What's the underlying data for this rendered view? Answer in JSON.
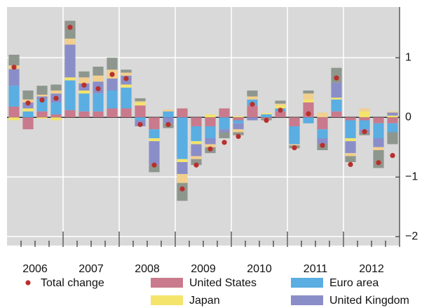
{
  "chart_data": {
    "type": "stacked-bar",
    "categories": [
      null,
      null,
      null,
      null,
      null,
      null,
      null,
      null,
      null,
      null,
      null,
      null,
      null,
      null,
      null,
      null,
      null,
      null,
      null,
      null,
      null,
      null,
      null,
      null,
      null,
      null,
      null,
      null
    ],
    "groups": [
      "2006",
      "2007",
      "2008",
      "2009",
      "2010",
      "2011",
      "2012"
    ],
    "ylim": [
      -2.15,
      1.85
    ],
    "yticks": [
      1,
      0,
      {
        "value": -1,
        "label": "−1"
      },
      {
        "value": -2,
        "label": "−2"
      }
    ],
    "grid": true,
    "series": [
      {
        "name": "United States",
        "color": "#c97a8c",
        "values": [
          0.18,
          -0.2,
          0.1,
          0.05,
          0.12,
          0.1,
          0.1,
          0.15,
          0.15,
          0.2,
          -0.2,
          0,
          0.15,
          -0.15,
          -0.15,
          0.15,
          -0.05,
          0.2,
          -0.02,
          0.1,
          -0.15,
          0.25,
          -0.2,
          0.1,
          -0.05,
          -0.05,
          -0.1,
          -0.1
        ]
      },
      {
        "name": "Euro area",
        "color": "#5aaee2",
        "values": [
          0.35,
          0.1,
          0.2,
          0.2,
          0.5,
          0.3,
          0.3,
          0.3,
          0.35,
          -0.05,
          -0.15,
          0.1,
          -0.7,
          -0.25,
          -0.2,
          -0.2,
          -0.05,
          0.1,
          0.05,
          0.05,
          -0.3,
          -0.1,
          -0.15,
          0.2,
          -0.3,
          -0.15,
          -0.25,
          -0.15
        ]
      },
      {
        "name": "Japan",
        "color": "#f4e46c",
        "values": [
          -0.05,
          0.05,
          -0.02,
          -0.05,
          0.05,
          0.05,
          0,
          0,
          0.05,
          0.05,
          -0.05,
          0,
          -0.05,
          -0.05,
          0.05,
          0,
          0.02,
          0,
          0.02,
          0.05,
          0,
          0.05,
          0,
          0.03,
          -0.05,
          0.1,
          0,
          0.03
        ]
      },
      {
        "name": "United Kingdom",
        "color": "#8a8ec8",
        "values": [
          0.28,
          0.1,
          0.05,
          0.15,
          0.55,
          0.12,
          0.2,
          0.2,
          0.15,
          -0.1,
          -0.4,
          -0.1,
          -0.2,
          -0.2,
          -0.1,
          -0.05,
          -0.1,
          -0.05,
          0,
          0,
          0,
          0,
          -0.1,
          0.25,
          -0.2,
          -0.05,
          -0.15,
          0.05
        ]
      },
      {
        "color": "#f1cf8e",
        "values": [
          0.06,
          0.05,
          0.03,
          0.05,
          0.1,
          0.1,
          0.1,
          0.15,
          0.05,
          0.02,
          0,
          0.03,
          -0.15,
          -0.05,
          -0.05,
          0,
          -0.05,
          0.05,
          0,
          0.03,
          -0.02,
          0.1,
          0.08,
          0,
          -0.05,
          0.05,
          -0.05,
          0.02
        ]
      },
      {
        "color": "#8e978e",
        "values": [
          0.18,
          0.15,
          0.15,
          0.1,
          0.3,
          0.1,
          0.15,
          0.2,
          0.05,
          0.05,
          -0.12,
          -0.08,
          -0.3,
          -0.1,
          -0.1,
          -0.1,
          -0.05,
          0.1,
          -0.03,
          0.05,
          -0.05,
          0.05,
          -0.1,
          0.25,
          -0.1,
          -0.05,
          -0.3,
          -0.2
        ]
      }
    ],
    "total": {
      "name": "Total change",
      "color": "#b8302c",
      "values": [
        0.84,
        0.24,
        0.29,
        0.32,
        1.51,
        0.54,
        0.48,
        0.72,
        0.65,
        -0.12,
        -0.8,
        -0.12,
        -1.2,
        -0.8,
        -0.53,
        -0.42,
        -0.32,
        0.22,
        -0.05,
        0.12,
        -0.51,
        0.06,
        -0.47,
        0.66,
        -0.79,
        -0.24,
        -0.76,
        -0.64
      ]
    }
  }
}
